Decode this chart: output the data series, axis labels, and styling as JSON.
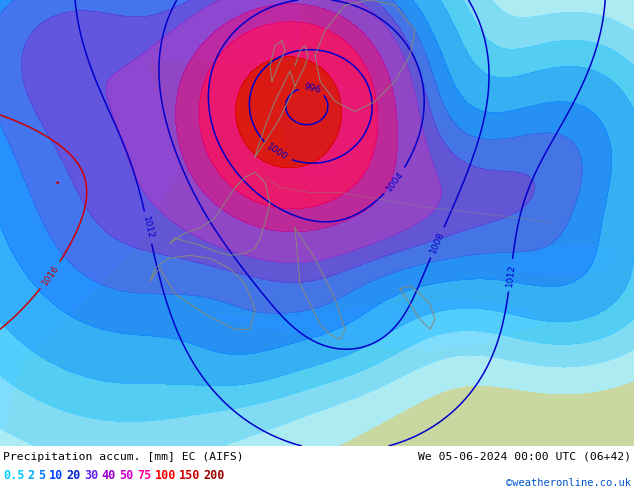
{
  "title_left": "Precipitation accum. [mm] EC (AIFS)",
  "title_right": "We 05-06-2024 00:00 UTC (06+42)",
  "credit": "©weatheronline.co.uk",
  "legend_values": [
    "0.5",
    "2",
    "5",
    "10",
    "20",
    "30",
    "40",
    "50",
    "75",
    "100",
    "150",
    "200"
  ],
  "legend_label_colors": [
    "#00ccff",
    "#00aaff",
    "#0077ff",
    "#0044ff",
    "#0022cc",
    "#6622ee",
    "#9900cc",
    "#cc00cc",
    "#ff0099",
    "#ff0000",
    "#cc0000",
    "#990000"
  ],
  "precip_levels": [
    0.5,
    2,
    5,
    10,
    20,
    30,
    40,
    50,
    75,
    100,
    150,
    200,
    250
  ],
  "precip_colors": [
    "#aaeeff",
    "#77ddff",
    "#44ccff",
    "#22aaff",
    "#1188ff",
    "#3366ee",
    "#5544dd",
    "#8833cc",
    "#bb1199",
    "#ee0066",
    "#dd0000",
    "#aa0000"
  ],
  "background_color": "#c8d8a0",
  "ocean_color": "#c0d8ee",
  "fig_bg": "#ffffff",
  "coast_color": "#888877",
  "p_low_color": "#0000cc",
  "p_high_color": "#cc0000"
}
